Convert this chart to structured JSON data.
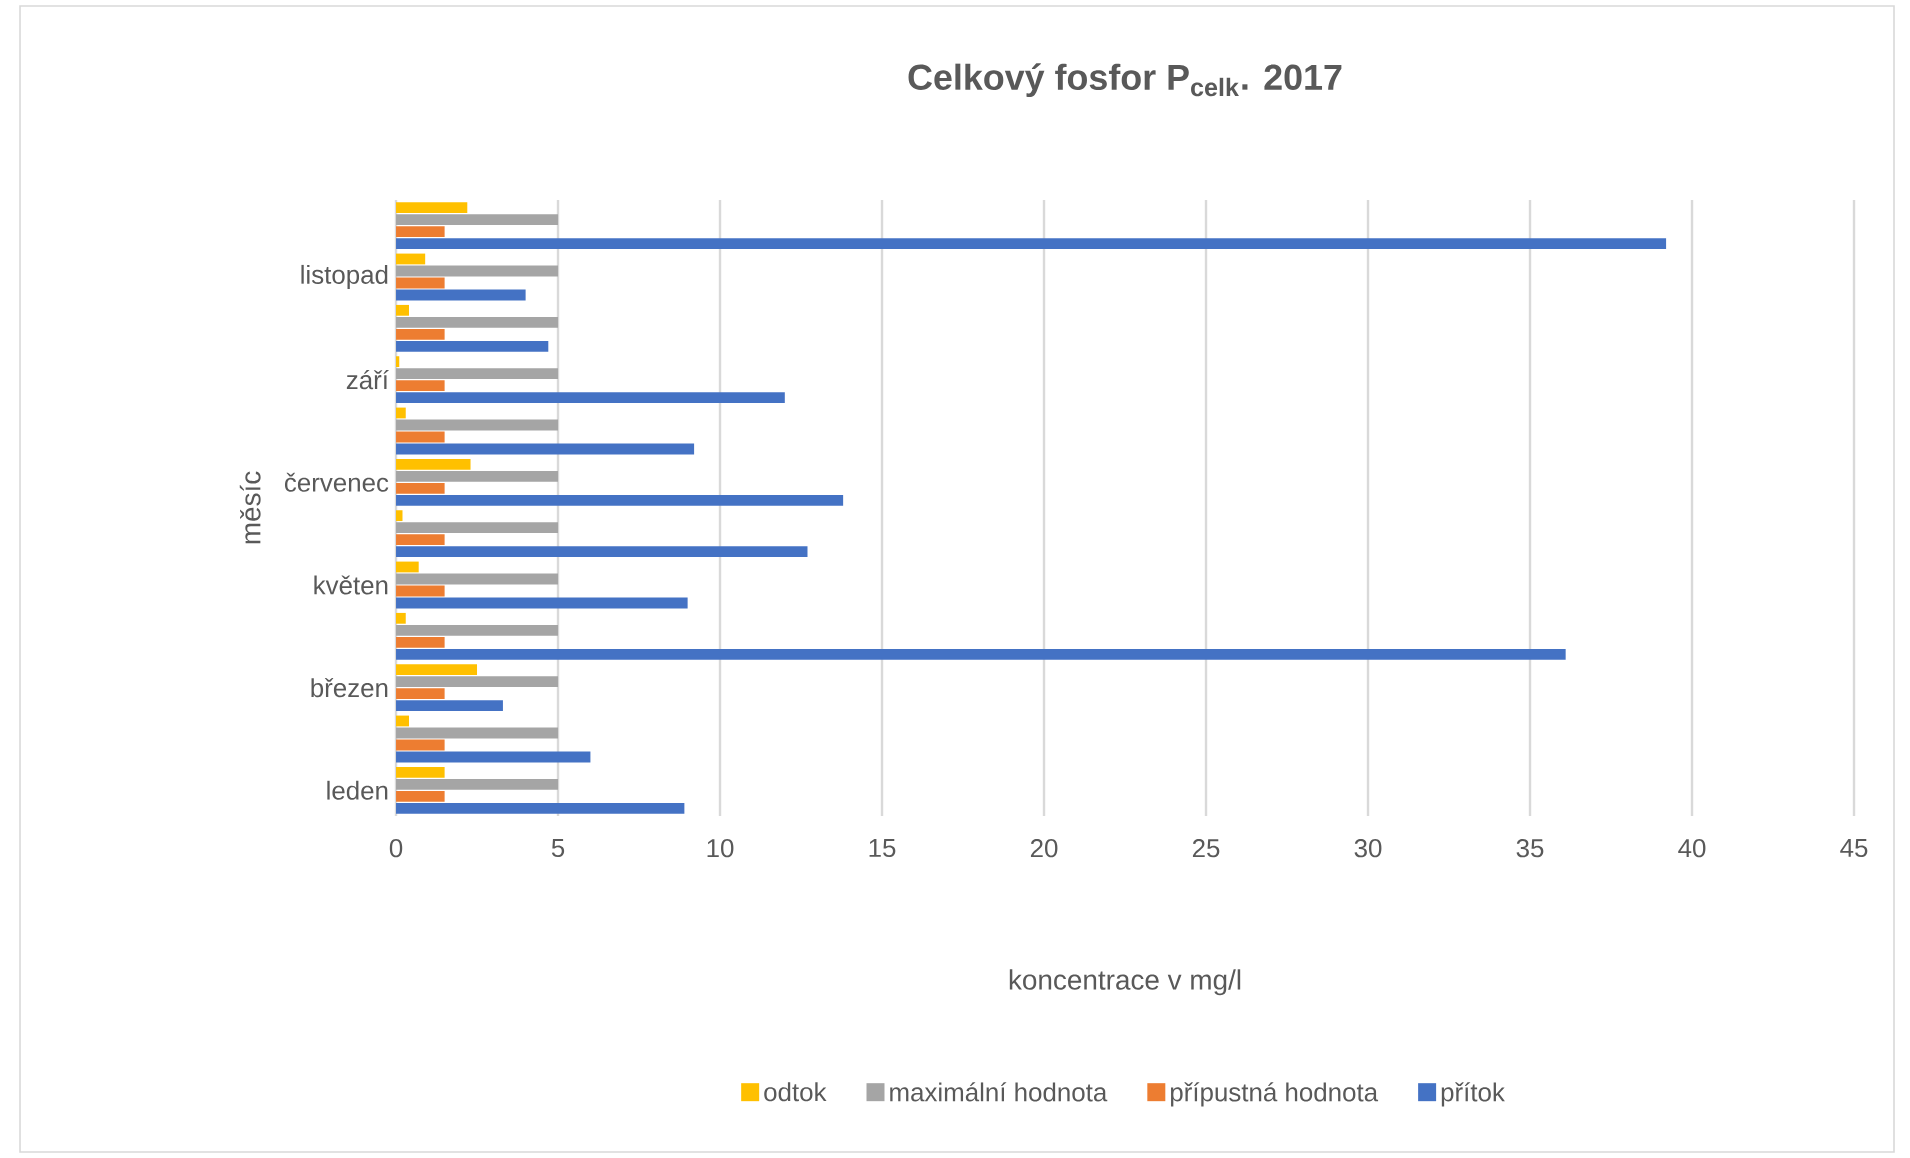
{
  "chart_data": {
    "type": "bar",
    "orientation": "horizontal",
    "title": "Celkový fosfor P$_{celk}$. 2017",
    "xlabel": "koncentrace v mg/l",
    "ylabel": "měsíc",
    "categories": [
      null,
      "listopad",
      null,
      "září",
      null,
      "červenec",
      null,
      "květen",
      null,
      "březen",
      null,
      "leden"
    ],
    "series": [
      {
        "name": "odtok",
        "color": "#ffc000",
        "values": [
          2.2,
          0.9,
          0.4,
          0.1,
          0.3,
          2.3,
          0.2,
          0.7,
          0.3,
          2.5,
          0.4,
          1.5
        ]
      },
      {
        "name": "maximální hodnota",
        "color": "#a5a5a5",
        "values": [
          5,
          5,
          5,
          5,
          5,
          5,
          5,
          5,
          5,
          5,
          5,
          5
        ]
      },
      {
        "name": "přípustná hodnota",
        "color": "#ed7d31",
        "values": [
          1.5,
          1.5,
          1.5,
          1.5,
          1.5,
          1.5,
          1.5,
          1.5,
          1.5,
          1.5,
          1.5,
          1.5
        ]
      },
      {
        "name": "přítok",
        "color": "#4472c4",
        "values": [
          39.2,
          4.0,
          4.7,
          12.0,
          9.2,
          13.8,
          12.7,
          9.0,
          36.1,
          3.3,
          6.0,
          8.9
        ]
      }
    ],
    "xlim": [
      0,
      45
    ],
    "xticks": [
      0,
      5,
      10,
      15,
      20,
      25,
      30,
      35,
      40,
      45
    ],
    "grid": "x",
    "legend": "bottom"
  }
}
